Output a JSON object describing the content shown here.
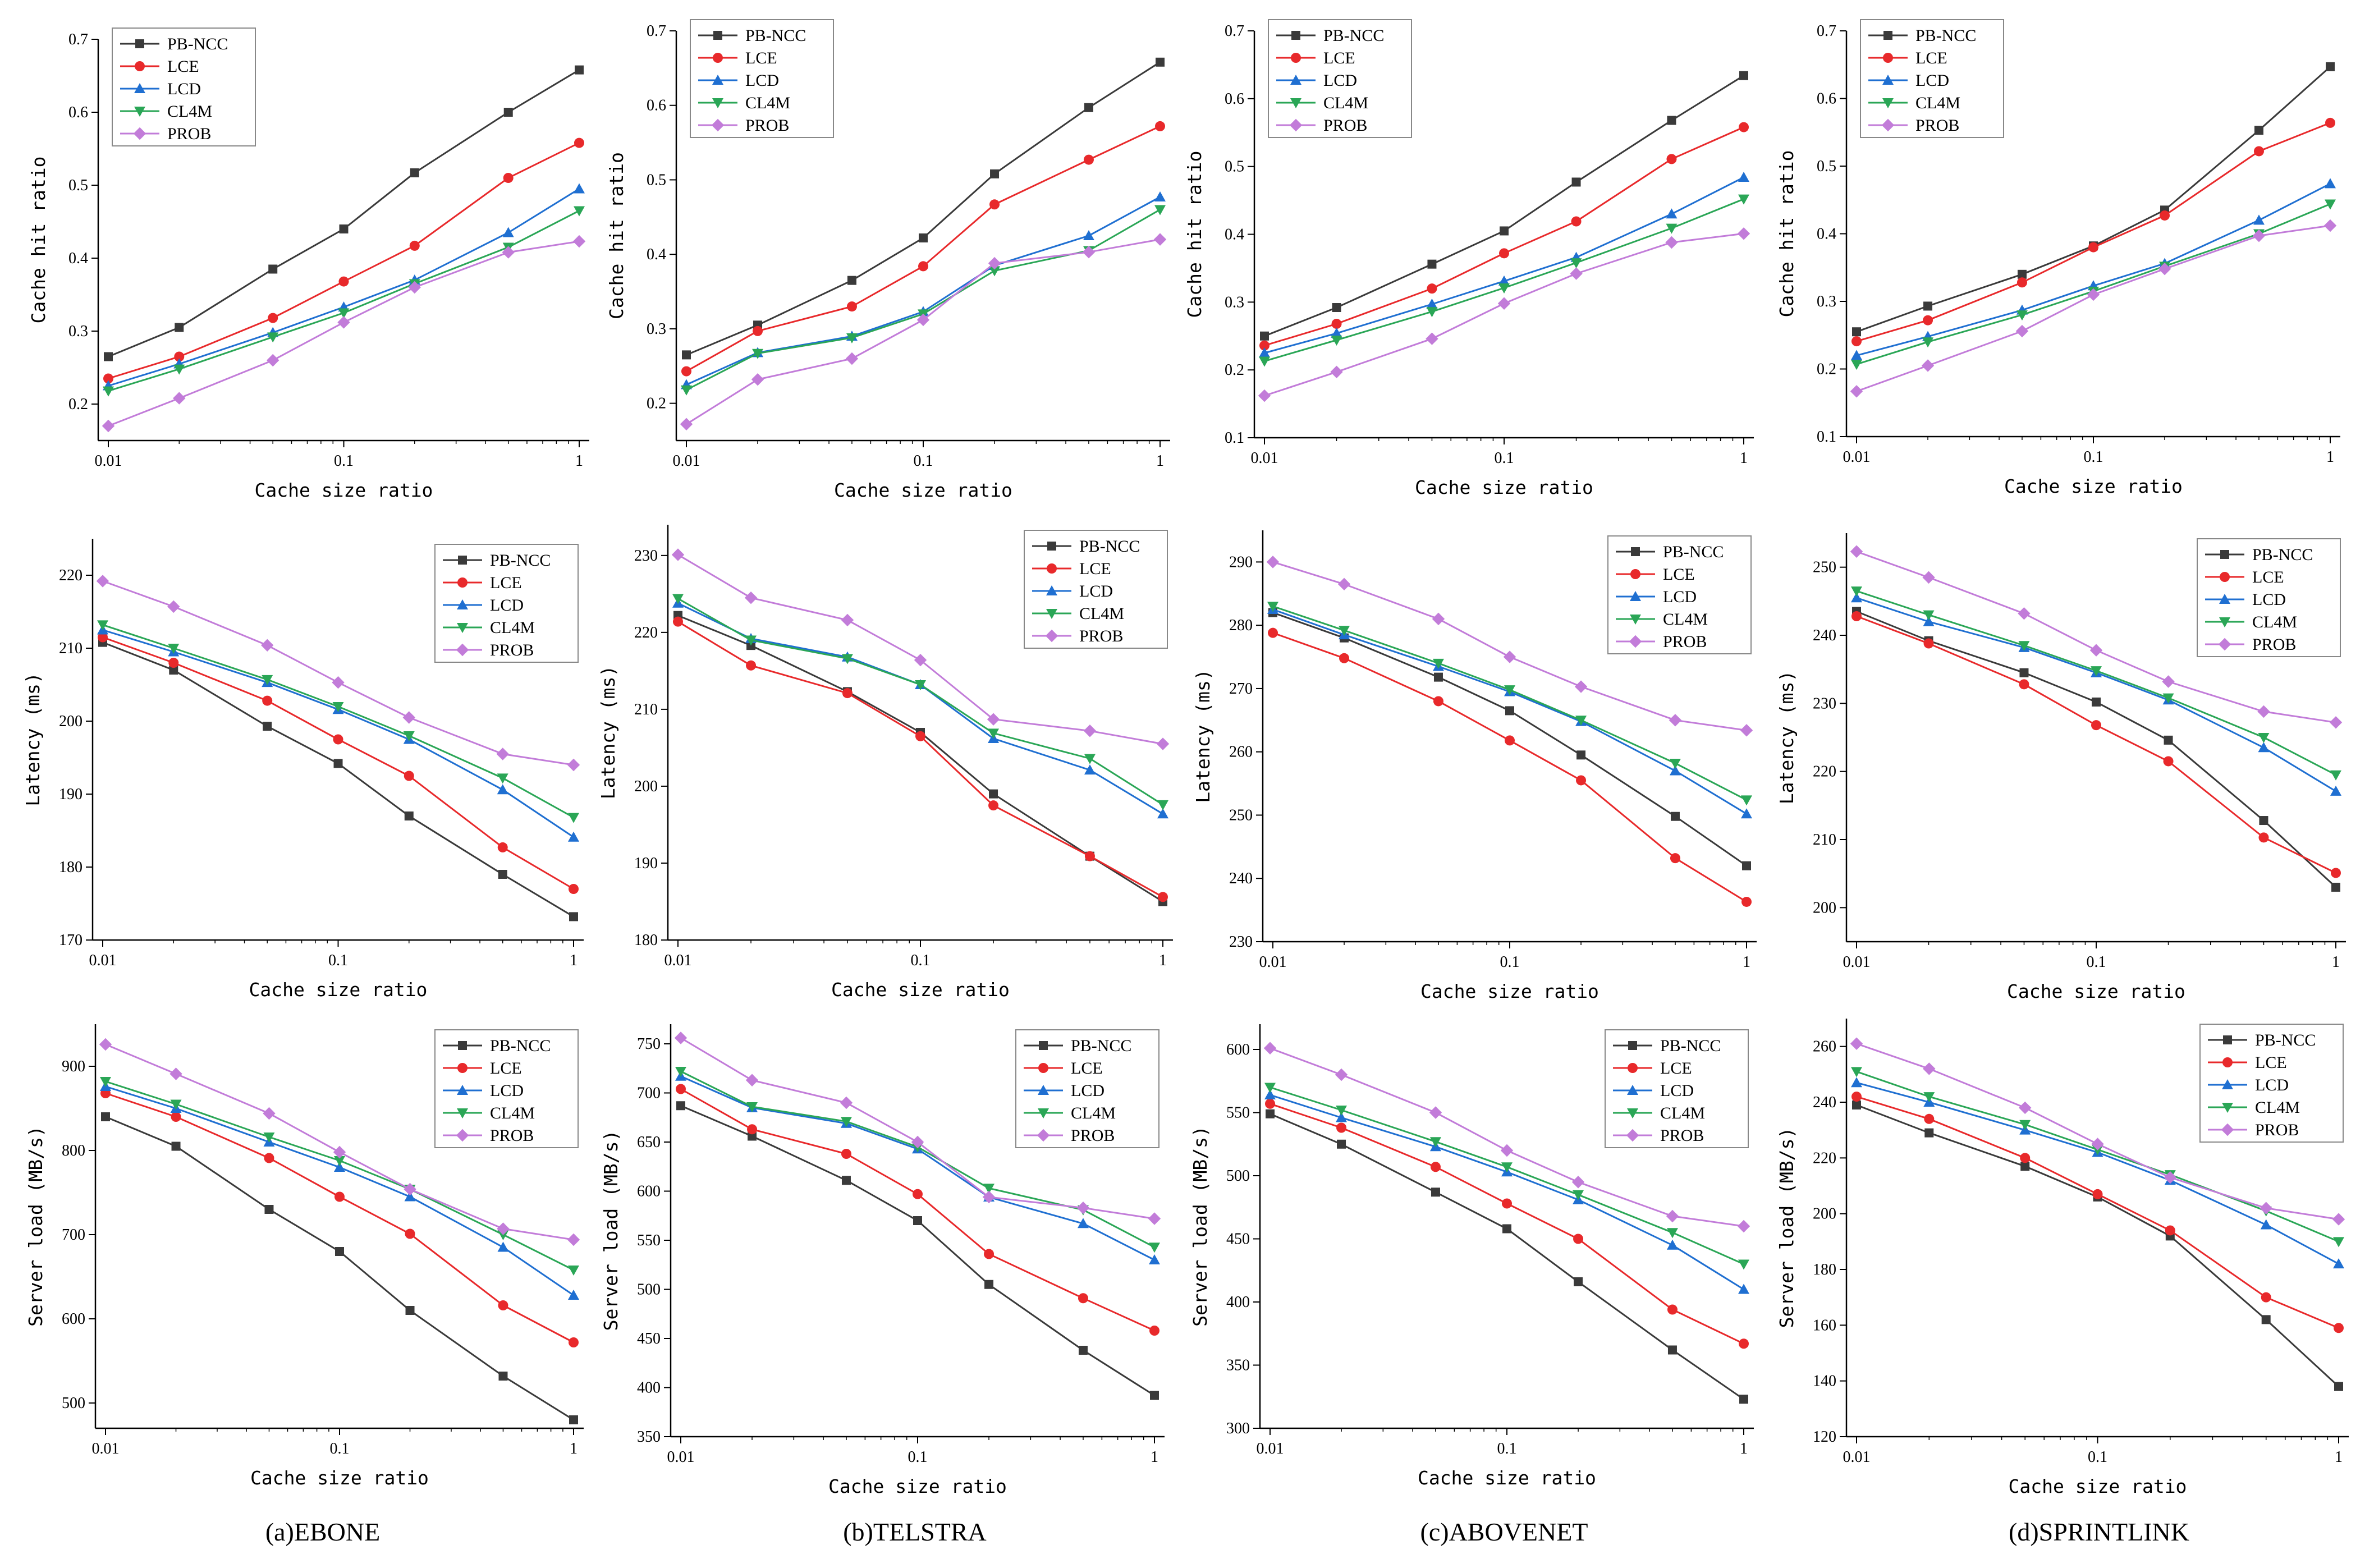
{
  "meta": {
    "series_names": [
      "PB-NCC",
      "LCE",
      "LCD",
      "CL4M",
      "PROB"
    ],
    "series_colors": [
      "#3a3a3a",
      "#e8292b",
      "#1f6fd1",
      "#2aa656",
      "#c27cd9"
    ],
    "series_markers": [
      "square",
      "circle",
      "triangle-up",
      "triangle-down",
      "diamond"
    ],
    "x_values": [
      0.01,
      0.02,
      0.05,
      0.1,
      0.2,
      0.5,
      1
    ],
    "x_tick_labels": [
      "0.01",
      "0.1",
      "1"
    ]
  },
  "captions": [
    "(a)EBONE",
    "(b)TELSTRA",
    "(c)ABOVENET",
    "(d)SPRINTLINK"
  ],
  "chart_data": [
    {
      "type": "line",
      "xscale": "log",
      "topology": "EBONE",
      "xlabel": "Cache size ratio",
      "ylabel": "Cache hit ratio",
      "ylim": [
        0.15,
        0.7
      ],
      "yticks": [
        0.2,
        0.3,
        0.4,
        0.5,
        0.6,
        0.7
      ],
      "legend_pos": "top-left",
      "series": [
        {
          "name": "PB-NCC",
          "values": [
            0.265,
            0.305,
            0.385,
            0.44,
            0.517,
            0.6,
            0.658
          ]
        },
        {
          "name": "LCE",
          "values": [
            0.235,
            0.265,
            0.318,
            0.368,
            0.417,
            0.51,
            0.558
          ]
        },
        {
          "name": "LCD",
          "values": [
            0.225,
            0.255,
            0.298,
            0.333,
            0.37,
            0.435,
            0.495
          ]
        },
        {
          "name": "CL4M",
          "values": [
            0.218,
            0.248,
            0.292,
            0.325,
            0.365,
            0.415,
            0.465
          ]
        },
        {
          "name": "PROB",
          "values": [
            0.17,
            0.208,
            0.26,
            0.312,
            0.36,
            0.408,
            0.423
          ]
        }
      ]
    },
    {
      "type": "line",
      "xscale": "log",
      "topology": "TELSTRA",
      "xlabel": "Cache size ratio",
      "ylabel": "Cache hit ratio",
      "ylim": [
        0.15,
        0.7
      ],
      "yticks": [
        0.2,
        0.3,
        0.4,
        0.5,
        0.6,
        0.7
      ],
      "legend_pos": "top-left",
      "series": [
        {
          "name": "PB-NCC",
          "values": [
            0.265,
            0.305,
            0.365,
            0.422,
            0.508,
            0.597,
            0.658
          ]
        },
        {
          "name": "LCE",
          "values": [
            0.243,
            0.297,
            0.33,
            0.384,
            0.467,
            0.527,
            0.572
          ]
        },
        {
          "name": "LCD",
          "values": [
            0.225,
            0.268,
            0.29,
            0.323,
            0.385,
            0.425,
            0.477
          ]
        },
        {
          "name": "CL4M",
          "values": [
            0.218,
            0.267,
            0.288,
            0.32,
            0.378,
            0.405,
            0.46
          ]
        },
        {
          "name": "PROB",
          "values": [
            0.172,
            0.232,
            0.26,
            0.312,
            0.388,
            0.403,
            0.42
          ]
        }
      ]
    },
    {
      "type": "line",
      "xscale": "log",
      "topology": "ABOVENET",
      "xlabel": "Cache size ratio",
      "ylabel": "Cache hit ratio",
      "ylim": [
        0.1,
        0.7
      ],
      "yticks": [
        0.1,
        0.2,
        0.3,
        0.4,
        0.5,
        0.6,
        0.7
      ],
      "legend_pos": "top-left",
      "series": [
        {
          "name": "PB-NCC",
          "values": [
            0.25,
            0.292,
            0.356,
            0.405,
            0.477,
            0.568,
            0.634
          ]
        },
        {
          "name": "LCE",
          "values": [
            0.236,
            0.268,
            0.32,
            0.372,
            0.419,
            0.511,
            0.558
          ]
        },
        {
          "name": "LCD",
          "values": [
            0.225,
            0.254,
            0.297,
            0.331,
            0.366,
            0.43,
            0.484
          ]
        },
        {
          "name": "CL4M",
          "values": [
            0.213,
            0.244,
            0.286,
            0.321,
            0.358,
            0.409,
            0.452
          ]
        },
        {
          "name": "PROB",
          "values": [
            0.162,
            0.197,
            0.246,
            0.298,
            0.342,
            0.388,
            0.401
          ]
        }
      ]
    },
    {
      "type": "line",
      "xscale": "log",
      "topology": "SPRINTLINK",
      "xlabel": "Cache size ratio",
      "ylabel": "Cache hit ratio",
      "ylim": [
        0.1,
        0.7
      ],
      "yticks": [
        0.1,
        0.2,
        0.3,
        0.4,
        0.5,
        0.6,
        0.7
      ],
      "legend_pos": "top-left",
      "series": [
        {
          "name": "PB-NCC",
          "values": [
            0.255,
            0.293,
            0.34,
            0.382,
            0.435,
            0.553,
            0.647
          ]
        },
        {
          "name": "LCE",
          "values": [
            0.241,
            0.272,
            0.328,
            0.38,
            0.427,
            0.522,
            0.564
          ]
        },
        {
          "name": "LCD",
          "values": [
            0.22,
            0.248,
            0.287,
            0.323,
            0.356,
            0.42,
            0.474
          ]
        },
        {
          "name": "CL4M",
          "values": [
            0.207,
            0.24,
            0.28,
            0.315,
            0.352,
            0.4,
            0.444
          ]
        },
        {
          "name": "PROB",
          "values": [
            0.167,
            0.205,
            0.256,
            0.31,
            0.348,
            0.397,
            0.412
          ]
        }
      ]
    },
    {
      "type": "line",
      "xscale": "log",
      "topology": "EBONE",
      "xlabel": "Cache size ratio",
      "ylabel": "Latency (ms)",
      "ylim": [
        170,
        225
      ],
      "yticks": [
        170,
        180,
        190,
        200,
        210,
        220
      ],
      "legend_pos": "top-right",
      "series": [
        {
          "name": "PB-NCC",
          "values": [
            210.8,
            207.0,
            199.3,
            194.2,
            187.0,
            179.0,
            173.2
          ]
        },
        {
          "name": "LCE",
          "values": [
            211.5,
            208.0,
            202.8,
            197.5,
            192.5,
            182.7,
            177.0
          ]
        },
        {
          "name": "LCD",
          "values": [
            212.5,
            209.5,
            205.3,
            201.6,
            197.5,
            190.6,
            184.1
          ]
        },
        {
          "name": "CL4M",
          "values": [
            213.2,
            210.0,
            205.7,
            202.0,
            198.0,
            192.2,
            186.8
          ]
        },
        {
          "name": "PROB",
          "values": [
            219.2,
            215.7,
            210.4,
            205.3,
            200.5,
            195.5,
            194.0
          ]
        }
      ]
    },
    {
      "type": "line",
      "xscale": "log",
      "topology": "TELSTRA",
      "xlabel": "Cache size ratio",
      "ylabel": "Latency (ms)",
      "ylim": [
        180,
        234
      ],
      "yticks": [
        180,
        190,
        200,
        210,
        220,
        230
      ],
      "legend_pos": "top-right",
      "series": [
        {
          "name": "PB-NCC",
          "values": [
            222.2,
            218.3,
            212.3,
            207.0,
            199.0,
            190.9,
            185.0
          ]
        },
        {
          "name": "LCE",
          "values": [
            221.4,
            215.7,
            212.1,
            206.5,
            197.5,
            190.9,
            185.6
          ]
        },
        {
          "name": "LCD",
          "values": [
            223.8,
            219.2,
            216.8,
            213.2,
            206.2,
            202.1,
            196.4
          ]
        },
        {
          "name": "CL4M",
          "values": [
            224.4,
            219.0,
            216.6,
            213.2,
            206.9,
            203.6,
            197.6
          ]
        },
        {
          "name": "PROB",
          "values": [
            230.1,
            224.5,
            221.6,
            216.4,
            208.7,
            207.2,
            205.5
          ]
        }
      ]
    },
    {
      "type": "line",
      "xscale": "log",
      "topology": "ABOVENET",
      "xlabel": "Cache size ratio",
      "ylabel": "Latency (ms)",
      "ylim": [
        230,
        295
      ],
      "yticks": [
        230,
        240,
        250,
        260,
        270,
        280,
        290
      ],
      "legend_pos": "top-right",
      "series": [
        {
          "name": "PB-NCC",
          "values": [
            282.0,
            278.0,
            271.8,
            266.5,
            259.5,
            249.8,
            242.0
          ]
        },
        {
          "name": "LCE",
          "values": [
            278.8,
            274.8,
            268.0,
            261.8,
            255.5,
            243.2,
            236.3
          ]
        },
        {
          "name": "LCD",
          "values": [
            282.5,
            278.5,
            273.5,
            269.5,
            264.8,
            257.0,
            250.2
          ]
        },
        {
          "name": "CL4M",
          "values": [
            283.0,
            279.2,
            274.0,
            269.8,
            265.0,
            258.2,
            252.4
          ]
        },
        {
          "name": "PROB",
          "values": [
            290.0,
            286.5,
            281.0,
            275.0,
            270.3,
            265.0,
            263.4
          ]
        }
      ]
    },
    {
      "type": "line",
      "xscale": "log",
      "topology": "SPRINTLINK",
      "xlabel": "Cache size ratio",
      "ylabel": "Latency (ms)",
      "ylim": [
        195,
        255
      ],
      "yticks": [
        200,
        210,
        220,
        230,
        240,
        250
      ],
      "legend_pos": "top-right",
      "series": [
        {
          "name": "PB-NCC",
          "values": [
            243.5,
            239.2,
            234.5,
            230.2,
            224.6,
            212.8,
            203.0
          ]
        },
        {
          "name": "LCE",
          "values": [
            242.8,
            238.8,
            232.8,
            226.8,
            221.5,
            210.3,
            205.1
          ]
        },
        {
          "name": "LCD",
          "values": [
            245.5,
            242.0,
            238.2,
            234.5,
            230.5,
            223.5,
            217.1
          ]
        },
        {
          "name": "CL4M",
          "values": [
            246.5,
            243.0,
            238.5,
            234.8,
            230.8,
            225.0,
            219.5
          ]
        },
        {
          "name": "PROB",
          "values": [
            252.3,
            248.5,
            243.2,
            237.8,
            233.2,
            228.8,
            227.2
          ]
        }
      ]
    },
    {
      "type": "line",
      "xscale": "log",
      "topology": "EBONE",
      "xlabel": "Cache size ratio",
      "ylabel": "Server load (MB/s)",
      "ylim": [
        470,
        950
      ],
      "yticks": [
        500,
        600,
        700,
        800,
        900
      ],
      "legend_pos": "top-right",
      "series": [
        {
          "name": "PB-NCC",
          "values": [
            840,
            805,
            730,
            680,
            610,
            532,
            480
          ]
        },
        {
          "name": "LCE",
          "values": [
            868,
            840,
            791,
            745,
            701,
            616,
            572
          ]
        },
        {
          "name": "LCD",
          "values": [
            876,
            850,
            810,
            780,
            745,
            685,
            628
          ]
        },
        {
          "name": "CL4M",
          "values": [
            882,
            855,
            816,
            788,
            754,
            700,
            658
          ]
        },
        {
          "name": "PROB",
          "values": [
            926,
            891,
            844,
            798,
            754,
            707,
            694
          ]
        }
      ]
    },
    {
      "type": "line",
      "xscale": "log",
      "topology": "TELSTRA",
      "xlabel": "Cache size ratio",
      "ylabel": "Server load (MB/s)",
      "ylim": [
        350,
        770
      ],
      "yticks": [
        350,
        400,
        450,
        500,
        550,
        600,
        650,
        700,
        750
      ],
      "legend_pos": "top-right",
      "series": [
        {
          "name": "PB-NCC",
          "values": [
            687,
            656,
            611,
            570,
            505,
            438,
            392
          ]
        },
        {
          "name": "LCE",
          "values": [
            704,
            663,
            638,
            597,
            536,
            491,
            458
          ]
        },
        {
          "name": "LCD",
          "values": [
            717,
            685,
            669,
            643,
            594,
            567,
            530
          ]
        },
        {
          "name": "CL4M",
          "values": [
            722,
            686,
            671,
            645,
            603,
            581,
            543
          ]
        },
        {
          "name": "PROB",
          "values": [
            756,
            713,
            690,
            650,
            594,
            583,
            572
          ]
        }
      ]
    },
    {
      "type": "line",
      "xscale": "log",
      "topology": "ABOVENET",
      "xlabel": "Cache size ratio",
      "ylabel": "Server load (MB/s)",
      "ylim": [
        300,
        620
      ],
      "yticks": [
        300,
        350,
        400,
        450,
        500,
        550,
        600
      ],
      "legend_pos": "top-right",
      "series": [
        {
          "name": "PB-NCC",
          "values": [
            549,
            525,
            487,
            458,
            416,
            362,
            323
          ]
        },
        {
          "name": "LCE",
          "values": [
            557,
            538,
            507,
            478,
            450,
            394,
            367
          ]
        },
        {
          "name": "LCD",
          "values": [
            564,
            546,
            523,
            503,
            481,
            445,
            410
          ]
        },
        {
          "name": "CL4M",
          "values": [
            570,
            552,
            527,
            507,
            485,
            455,
            430
          ]
        },
        {
          "name": "PROB",
          "values": [
            601,
            580,
            550,
            520,
            495,
            468,
            460
          ]
        }
      ]
    },
    {
      "type": "line",
      "xscale": "log",
      "topology": "SPRINTLINK",
      "xlabel": "Cache size ratio",
      "ylabel": "Server load (MB/s)",
      "ylim": [
        120,
        270
      ],
      "yticks": [
        120,
        140,
        160,
        180,
        200,
        220,
        240,
        260
      ],
      "legend_pos": "top-right",
      "series": [
        {
          "name": "PB-NCC",
          "values": [
            239,
            229,
            217,
            206,
            192,
            162,
            138
          ]
        },
        {
          "name": "LCE",
          "values": [
            242,
            234,
            220,
            207,
            194,
            170,
            159
          ]
        },
        {
          "name": "LCD",
          "values": [
            247,
            240,
            230,
            222,
            212,
            196,
            182
          ]
        },
        {
          "name": "CL4M",
          "values": [
            251,
            242,
            232,
            223,
            214,
            201,
            190
          ]
        },
        {
          "name": "PROB",
          "values": [
            261,
            252,
            238,
            225,
            213,
            202,
            198
          ]
        }
      ]
    }
  ]
}
